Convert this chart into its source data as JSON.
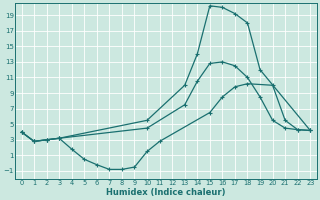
{
  "xlabel": "Humidex (Indice chaleur)",
  "bg_color": "#cce8e0",
  "grid_color": "#b8d8d0",
  "line_color": "#1a7070",
  "xlim": [
    -0.5,
    23.5
  ],
  "ylim": [
    -2.0,
    20.5
  ],
  "xticks": [
    0,
    1,
    2,
    3,
    4,
    5,
    6,
    7,
    8,
    9,
    10,
    11,
    12,
    13,
    14,
    15,
    16,
    17,
    18,
    19,
    20,
    21,
    22,
    23
  ],
  "yticks": [
    -1,
    1,
    3,
    5,
    7,
    9,
    11,
    13,
    15,
    17,
    19
  ],
  "line1_x": [
    0,
    1,
    2,
    3,
    10,
    13,
    14,
    15,
    16,
    17,
    18,
    19,
    23
  ],
  "line1_y": [
    4.0,
    2.8,
    3.0,
    3.2,
    5.5,
    10.0,
    14.0,
    20.2,
    20.0,
    19.2,
    18.0,
    12.0,
    4.2
  ],
  "line2_x": [
    0,
    1,
    2,
    3,
    4,
    5,
    6,
    7,
    8,
    9,
    10,
    11,
    15,
    16,
    17,
    18,
    20,
    21,
    22,
    23
  ],
  "line2_y": [
    4.0,
    2.8,
    3.0,
    3.2,
    1.8,
    0.5,
    -0.2,
    -0.8,
    -0.8,
    -0.5,
    1.5,
    2.8,
    6.5,
    8.5,
    9.8,
    10.2,
    10.0,
    5.5,
    4.3,
    4.2
  ],
  "line3_x": [
    0,
    1,
    2,
    3,
    10,
    13,
    14,
    15,
    16,
    17,
    18,
    19,
    20,
    21,
    22,
    23
  ],
  "line3_y": [
    4.0,
    2.8,
    3.0,
    3.2,
    4.5,
    7.5,
    10.5,
    12.8,
    13.0,
    12.5,
    11.0,
    8.5,
    5.5,
    4.5,
    4.3,
    4.2
  ]
}
